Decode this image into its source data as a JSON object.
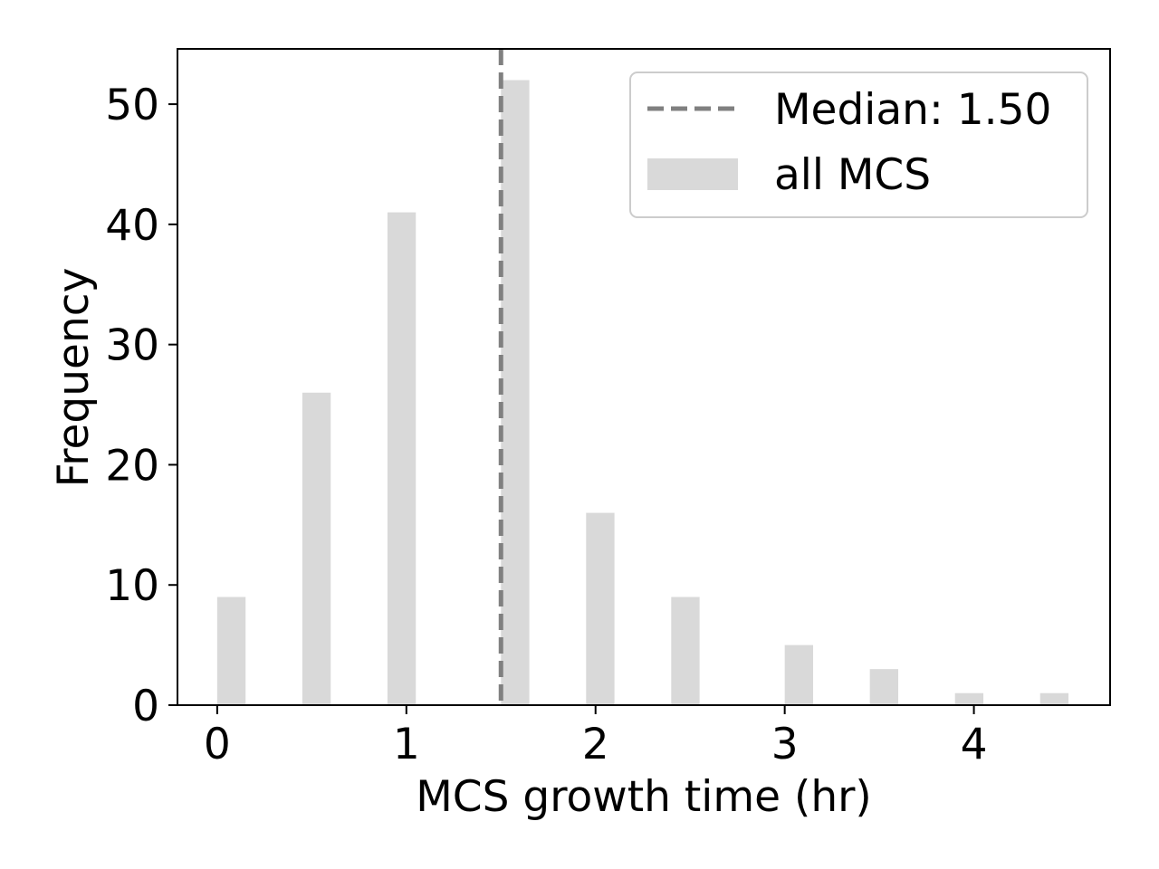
{
  "chart_data": {
    "type": "bar",
    "title": "",
    "xlabel": "MCS growth time (hr)",
    "ylabel": "Frequency",
    "x": [
      0.075,
      0.525,
      0.975,
      1.575,
      2.025,
      2.475,
      3.075,
      3.525,
      3.975,
      4.425
    ],
    "values": [
      9,
      26,
      41,
      52,
      16,
      9,
      5,
      3,
      1,
      1
    ],
    "bar_width": 0.15,
    "xlim": [
      -0.21,
      4.72
    ],
    "ylim": [
      0,
      54.6
    ],
    "xticks": [
      0,
      1,
      2,
      3,
      4
    ],
    "xtick_labels": [
      "0",
      "1",
      "2",
      "3",
      "4"
    ],
    "yticks": [
      0,
      10,
      20,
      30,
      40,
      50
    ],
    "ytick_labels": [
      "0",
      "10",
      "20",
      "30",
      "40",
      "50"
    ],
    "grid": false,
    "series": [
      {
        "name": "all MCS",
        "color": "#d9d9d9"
      }
    ],
    "median_line": {
      "label": "Median: 1.50",
      "x": 1.5,
      "color": "#808080",
      "style": "dashed"
    },
    "legend": {
      "placement": "upper right",
      "entries": [
        "Median: 1.50",
        "all MCS"
      ]
    }
  }
}
